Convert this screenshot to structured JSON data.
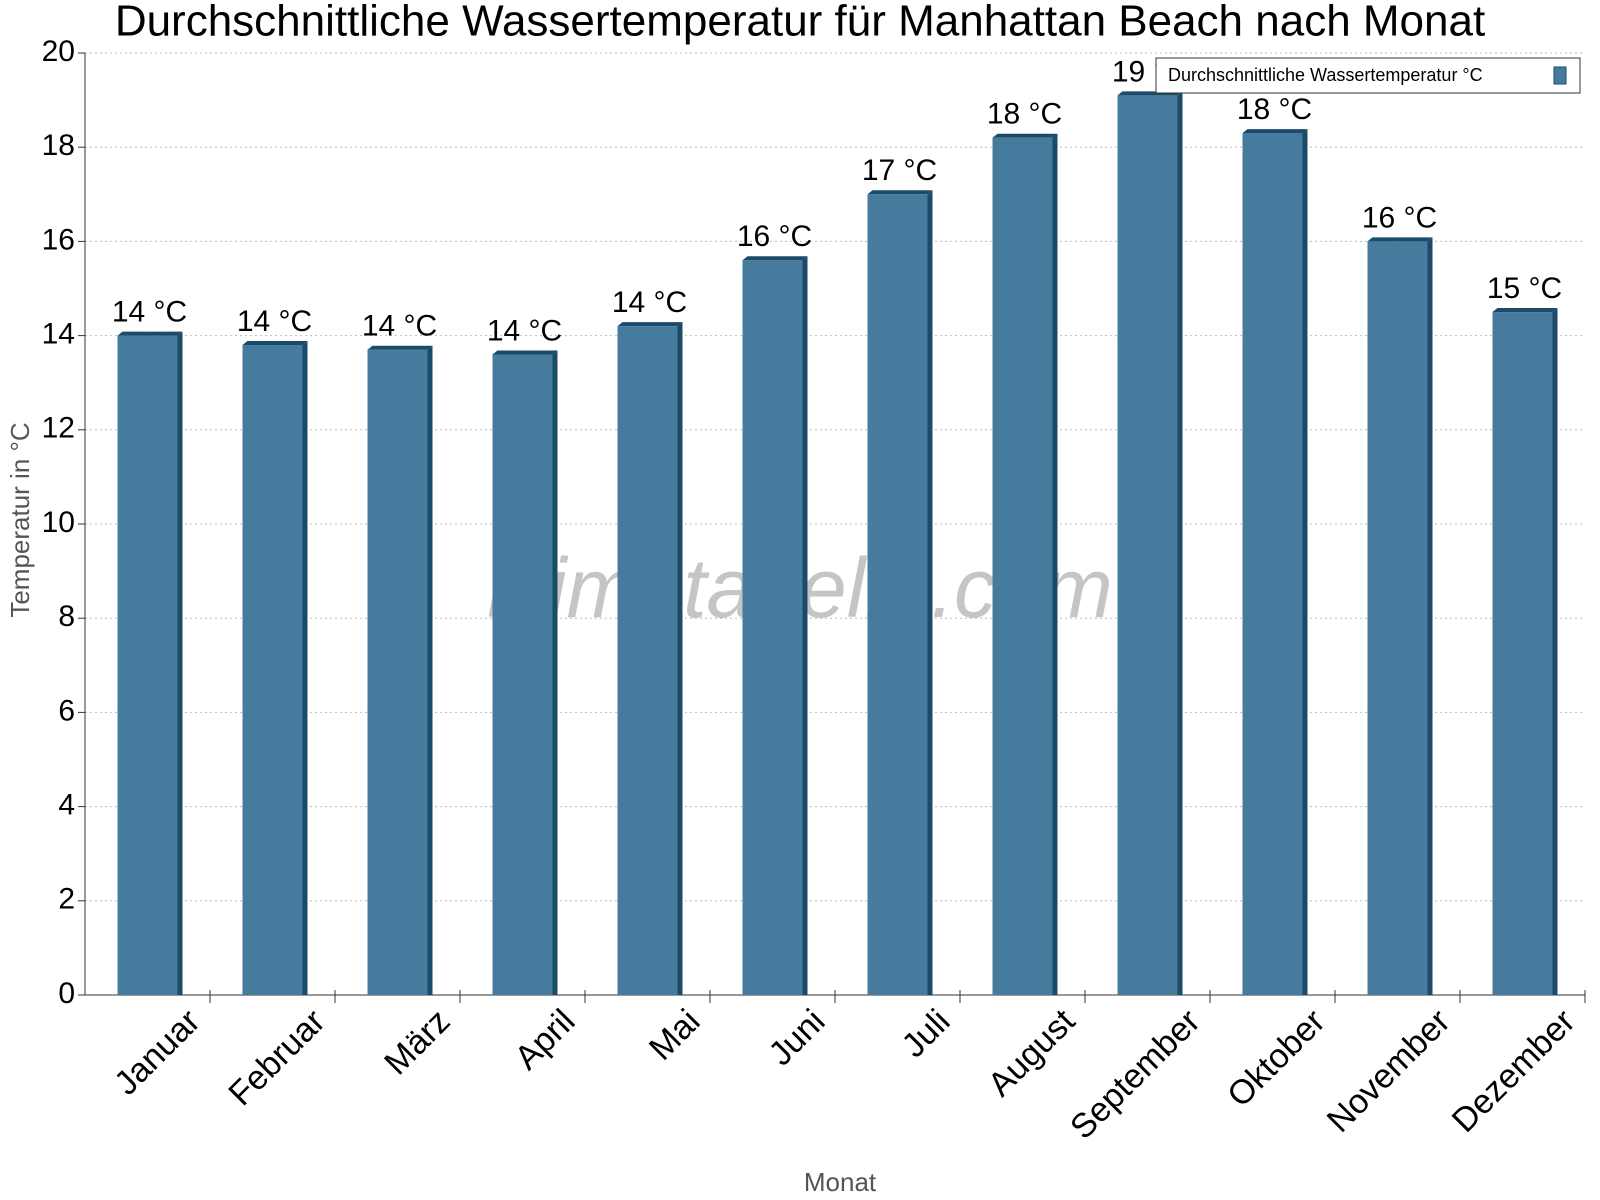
{
  "chart_data": {
    "type": "bar",
    "title": "Durchschnittliche Wassertemperatur für Manhattan Beach nach Monat",
    "x_label": "Monat",
    "y_label": "Temperatur in °C",
    "watermark": "klimatabelle.com",
    "categories": [
      "Januar",
      "Februar",
      "März",
      "April",
      "Mai",
      "Juni",
      "Juli",
      "August",
      "September",
      "Oktober",
      "November",
      "Dezember"
    ],
    "series": [
      {
        "name": "Durchschnittliche Wassertemperatur °C",
        "color": "#467b9d",
        "values": [
          14.0,
          13.8,
          13.7,
          13.6,
          14.2,
          15.6,
          17.0,
          18.2,
          19.1,
          18.3,
          16.0,
          14.5
        ],
        "value_labels": [
          "14 °C",
          "14 °C",
          "14 °C",
          "14 °C",
          "14 °C",
          "16 °C",
          "17 °C",
          "18 °C",
          "19 °C",
          "18 °C",
          "16 °C",
          "15 °C"
        ]
      }
    ],
    "ylim": [
      0,
      20
    ],
    "yticks": [
      0,
      2,
      4,
      6,
      8,
      10,
      12,
      14,
      16,
      18,
      20
    ],
    "grid": true,
    "legend": "top-right"
  }
}
